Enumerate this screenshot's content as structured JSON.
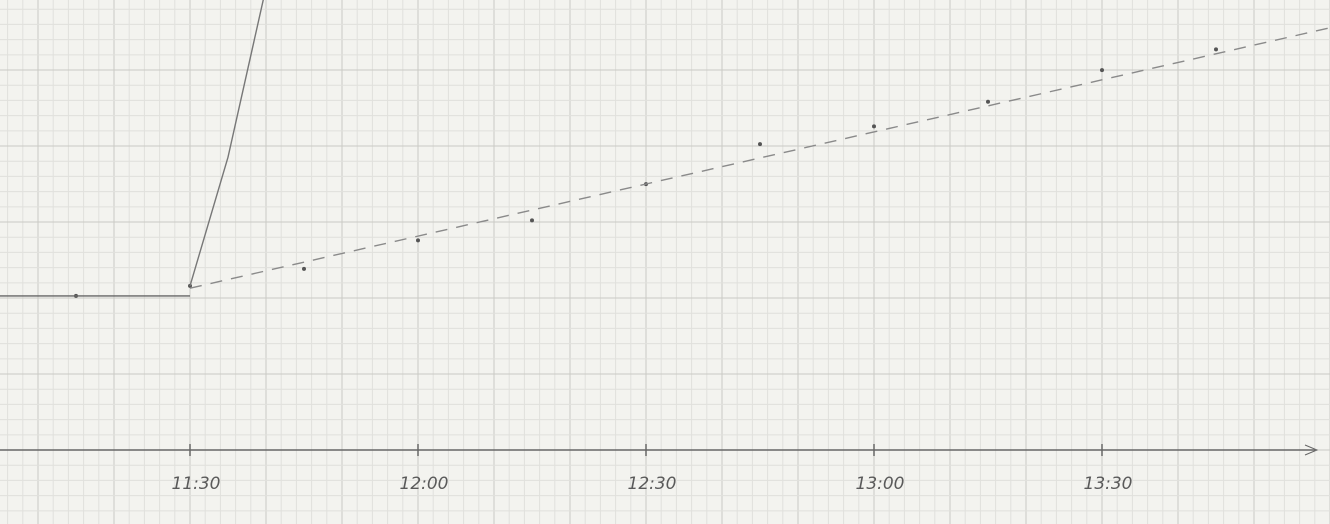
{
  "chart_data": {
    "type": "line",
    "xlim": [
      "11:05",
      "14:00"
    ],
    "ylim": [
      -0.96,
      5.84
    ],
    "xticks": [
      "11:30",
      "12:00",
      "12:30",
      "13:00",
      "13:30"
    ],
    "series": [
      {
        "color": "#555555",
        "style": "points",
        "x": [
          "11:15",
          "11:30",
          "11:45",
          "12:00",
          "12:15",
          "12:30",
          "12:45",
          "13:00",
          "13:15",
          "13:30",
          "13:45"
        ],
        "values": [
          2.0,
          2.13,
          2.35,
          2.72,
          2.98,
          3.45,
          3.97,
          4.2,
          4.52,
          4.93,
          5.2
        ]
      },
      {
        "color": "#666666",
        "style": "solid",
        "x": [
          "11:05",
          "11:30"
        ],
        "values": [
          2.0,
          2.0
        ]
      },
      {
        "color": "#777777",
        "style": "solid",
        "x": [
          "11:30",
          "11:35",
          "11:40"
        ],
        "values": [
          2.13,
          3.8,
          6.0
        ]
      },
      {
        "color": "#8a8a8a",
        "style": "dashed",
        "x": [
          "11:30",
          "14:00"
        ],
        "values": [
          2.1,
          5.48
        ]
      }
    ]
  }
}
